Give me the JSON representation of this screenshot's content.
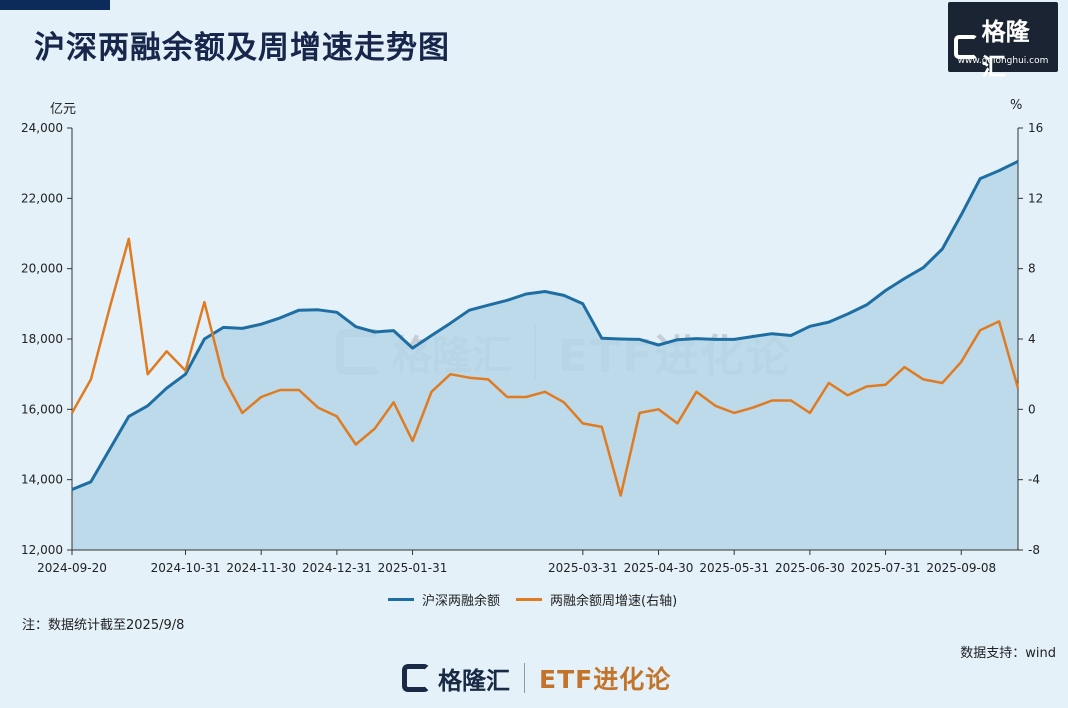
{
  "title": "沪深两融余额及周增速走势图",
  "logo": {
    "name": "格隆汇",
    "url": "www.gelonghui.com"
  },
  "note": "注：数据统计截至2025/9/8",
  "source": "数据支持：wind",
  "bottom_brand": {
    "name": "格隆汇",
    "etf": "ETF进化论"
  },
  "watermark": {
    "name": "格隆汇",
    "etf": "ETF进化论"
  },
  "colors": {
    "balance": "#1f6ea3",
    "growth": "#e07b22",
    "area": "#b5d6e8"
  },
  "chart_data": {
    "type": "line",
    "left_unit": "亿元",
    "right_unit": "%",
    "y_left": {
      "min": 12000,
      "max": 24000,
      "ticks": [
        "24,000",
        "22,000",
        "20,000",
        "18,000",
        "16,000",
        "14,000",
        "12,000"
      ]
    },
    "y_right": {
      "min": -8,
      "max": 16,
      "ticks": [
        "16",
        "12",
        "8",
        "4",
        "0",
        "-4",
        "-8"
      ]
    },
    "x_ticks": [
      "2024-09-20",
      "2024-10-31",
      "2024-11-30",
      "2024-12-31",
      "2025-01-31",
      "2025-03-31",
      "2025-04-30",
      "2025-05-31",
      "2025-06-30",
      "2025-07-31",
      "2025-09-08"
    ],
    "x_tick_index": [
      0,
      6,
      10,
      14,
      18,
      27,
      31,
      35,
      39,
      43,
      47
    ],
    "series": [
      {
        "name": "沪深两融余额",
        "axis": "left",
        "values": [
          13720,
          13940,
          14870,
          15800,
          16100,
          16600,
          17000,
          18000,
          18330,
          18300,
          18420,
          18600,
          18820,
          18830,
          18760,
          18350,
          18200,
          18240,
          17740,
          18100,
          18450,
          18820,
          18960,
          19100,
          19280,
          19350,
          19240,
          19000,
          18020,
          18000,
          17990,
          17830,
          17980,
          18010,
          17990,
          17990,
          18070,
          18150,
          18100,
          18360,
          18480,
          18710,
          18970,
          19380,
          19720,
          20030,
          20560,
          21530,
          22560,
          22790,
          23050
        ]
      },
      {
        "name": "两融余额周增速(右轴)",
        "axis": "right",
        "values": [
          -0.2,
          1.7,
          5.8,
          9.7,
          2.0,
          3.3,
          2.2,
          6.1,
          1.8,
          -0.2,
          0.7,
          1.1,
          1.1,
          0.1,
          -0.4,
          -2.0,
          -1.1,
          0.4,
          -1.8,
          1.0,
          2.0,
          1.8,
          1.7,
          0.7,
          0.7,
          1.0,
          0.4,
          -0.8,
          -1.0,
          -4.9,
          -0.2,
          0.0,
          -0.8,
          1.0,
          0.2,
          -0.2,
          0.1,
          0.5,
          0.5,
          -0.2,
          1.5,
          0.8,
          1.3,
          1.4,
          2.4,
          1.7,
          1.5,
          2.7,
          4.5,
          5.0,
          1.2
        ]
      }
    ]
  }
}
